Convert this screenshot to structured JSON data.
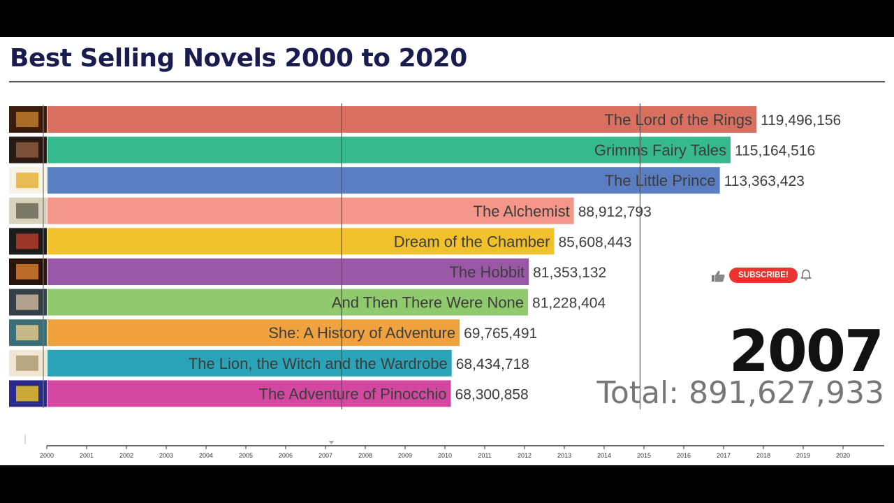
{
  "title": "Best Selling Novels 2000 to 2020",
  "year": "2007",
  "total_text": "Total: 891,627,933",
  "subscribe": {
    "label": "SUBSCRIBE!",
    "like_icon": "thumbs-up-icon",
    "bell_icon": "bell-icon",
    "color": "#e8332e"
  },
  "chart_data": {
    "type": "bar",
    "orientation": "horizontal",
    "title": "Best Selling Novels 2000 to 2020",
    "timeline_value": 2007.15,
    "timeline_ticks": [
      "2000",
      "2001",
      "2002",
      "2003",
      "2004",
      "2005",
      "2006",
      "2007",
      "2008",
      "2009",
      "2010",
      "2011",
      "2012",
      "2013",
      "2014",
      "2015",
      "2016",
      "2017",
      "2018",
      "2019",
      "2020"
    ],
    "xlim": [
      0,
      135000000
    ],
    "gridlines": [
      50000000,
      100000000
    ],
    "grid": true,
    "categories": [
      "The Lord of the Rings",
      "Grimms Fairy Tales",
      "The Little Prince",
      "The Alchemist",
      "Dream of the Chamber",
      "The Hobbit",
      "And Then There Were None",
      "She: A History of Adventure",
      "The Lion, the Witch and the Wardrobe",
      "The Adventure of Pinocchio"
    ],
    "values": [
      119496156,
      115164516,
      113363423,
      88912793,
      85608443,
      81353132,
      81228404,
      69765491,
      68434718,
      68300858
    ],
    "value_labels": [
      "119,496,156",
      "115,164,516",
      "113,363,423",
      "88,912,793",
      "85,608,443",
      "81,353,132",
      "81,228,404",
      "69,765,491",
      "68,434,718",
      "68,300,858"
    ],
    "colors": [
      "#d9705f",
      "#36b98f",
      "#5a7ec1",
      "#f4978a",
      "#f0c12c",
      "#9a57a6",
      "#91c96e",
      "#f0a23e",
      "#2ba4b8",
      "#d347a1"
    ],
    "thumbnail_colors": [
      [
        "#3a1d0c",
        "#c07a2a"
      ],
      [
        "#2a1a14",
        "#8a5a3e"
      ],
      [
        "#f6f2e4",
        "#e3b33a"
      ],
      [
        "#d8d2bc",
        "#6c6a58"
      ],
      [
        "#1c1c1c",
        "#b23a2a"
      ],
      [
        "#2a140a",
        "#d47a2a"
      ],
      [
        "#35404a",
        "#c9b49a"
      ],
      [
        "#3a6e78",
        "#e0c68a"
      ],
      [
        "#efe6d4",
        "#b09a72"
      ],
      [
        "#2a2a8a",
        "#e6c02a"
      ]
    ]
  }
}
